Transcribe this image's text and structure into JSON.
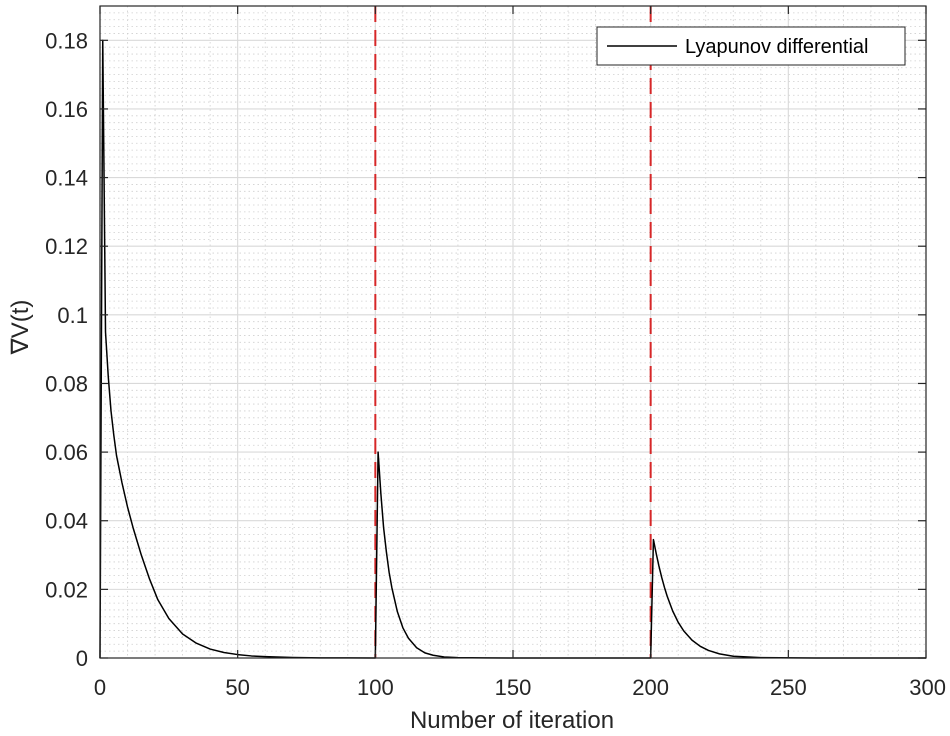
{
  "chart_data": {
    "type": "line",
    "title": "",
    "xlabel": "Number of iteration",
    "ylabel": "∇V(t)",
    "xlim": [
      0,
      300
    ],
    "ylim": [
      0,
      0.19
    ],
    "x_ticks": [
      0,
      50,
      100,
      150,
      200,
      250,
      300
    ],
    "x_tick_labels": [
      "0",
      "50",
      "100",
      "150",
      "200",
      "250",
      "300"
    ],
    "y_ticks": [
      0,
      0.02,
      0.04,
      0.06,
      0.08,
      0.1,
      0.12,
      0.14,
      0.16,
      0.18
    ],
    "y_tick_labels": [
      "0",
      "0.02",
      "0.04",
      "0.06",
      "0.08",
      "0.1",
      "0.12",
      "0.14",
      "0.16",
      "0.18"
    ],
    "grid": true,
    "minor_grid": true,
    "legend": {
      "position": "top-right",
      "entries": [
        "Lyapunov differential"
      ]
    },
    "vertical_lines": [
      {
        "x": 100,
        "style": "dashed",
        "color": "#d62728"
      },
      {
        "x": 200,
        "style": "dashed",
        "color": "#d62728"
      }
    ],
    "series": [
      {
        "name": "Lyapunov differential",
        "color": "#000000",
        "x": [
          0,
          1,
          2,
          3,
          4,
          5,
          6,
          8,
          10,
          12,
          15,
          18,
          21,
          25,
          30,
          35,
          40,
          45,
          50,
          55,
          60,
          70,
          80,
          90,
          99.6,
          100,
          101,
          102,
          103,
          104,
          105,
          106,
          108,
          110,
          112,
          115,
          118,
          121,
          125,
          130,
          140,
          150,
          170,
          199.6,
          200,
          201,
          202,
          203,
          204,
          205,
          206,
          208,
          210,
          212,
          215,
          218,
          221,
          225,
          230,
          240,
          260,
          280,
          300
        ],
        "y": [
          0,
          0.18,
          0.095,
          0.082,
          0.072,
          0.065,
          0.059,
          0.051,
          0.044,
          0.038,
          0.03,
          0.023,
          0.017,
          0.0115,
          0.007,
          0.0043,
          0.0026,
          0.0016,
          0.001,
          0.0006,
          0.0004,
          0.00015,
          5e-05,
          2e-05,
          0,
          0,
          0.06,
          0.048,
          0.038,
          0.031,
          0.025,
          0.0205,
          0.0135,
          0.0088,
          0.0058,
          0.003,
          0.0015,
          0.0008,
          0.0003,
          0.0001,
          2e-05,
          0,
          0,
          0,
          0,
          0.0345,
          0.0305,
          0.0268,
          0.0235,
          0.0206,
          0.018,
          0.0137,
          0.0104,
          0.0079,
          0.0052,
          0.0034,
          0.0022,
          0.0012,
          0.0005,
          0.0001,
          0,
          0,
          0
        ]
      }
    ]
  }
}
